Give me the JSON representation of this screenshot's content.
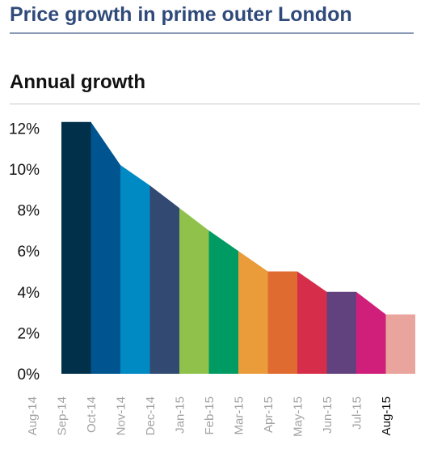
{
  "header": {
    "title": "Price growth in prime outer London",
    "subtitle": "Annual growth"
  },
  "chart_data": {
    "type": "area",
    "title": "Annual growth",
    "xlabel": "",
    "ylabel": "",
    "categories": [
      "Aug-14",
      "Sep-14",
      "Oct-14",
      "Nov-14",
      "Dec-14",
      "Jan-15",
      "Feb-15",
      "Mar-15",
      "Apr-15",
      "May-15",
      "Jun-15",
      "Jul-15",
      "Aug-15"
    ],
    "values": [
      12.3,
      12.3,
      10.2,
      9.2,
      8.1,
      7.0,
      6.0,
      5.0,
      5.0,
      4.0,
      4.0,
      2.9,
      2.9
    ],
    "segment_colors": [
      "#00304a",
      "#005591",
      "#008ac4",
      "#324a72",
      "#8fc14b",
      "#009b62",
      "#ea9c3a",
      "#e06b31",
      "#d62e4a",
      "#62417f",
      "#d01f7b",
      "#e8a49d"
    ],
    "last_category_color": "#111111",
    "other_category_color": "#a3a3a3",
    "ylim": [
      0,
      12
    ],
    "yticks": [
      0,
      2,
      4,
      6,
      8,
      10,
      12
    ],
    "ytick_labels": [
      "0%",
      "2%",
      "4%",
      "6%",
      "8%",
      "10%",
      "12%"
    ],
    "grid": false,
    "legend": "none"
  }
}
